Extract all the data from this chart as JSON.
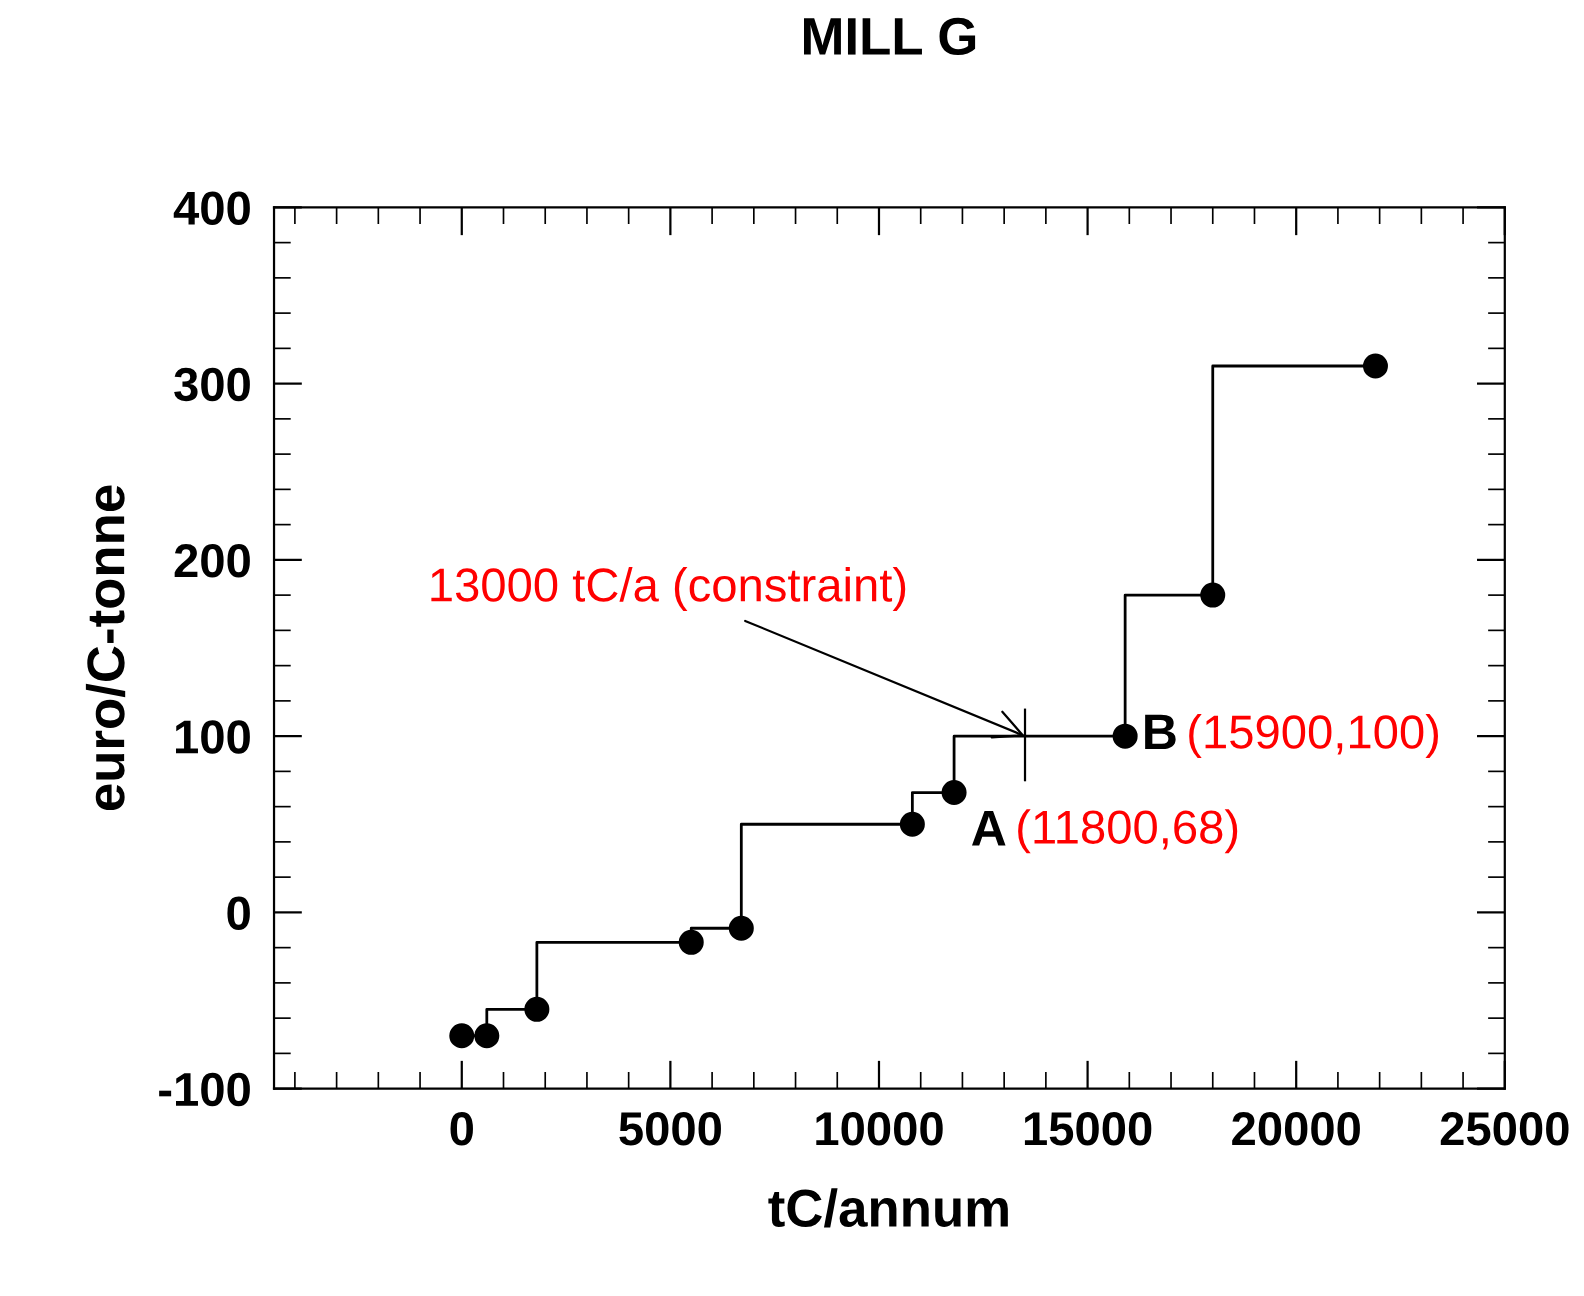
{
  "chart_data": {
    "type": "step",
    "title": "MILL G",
    "xlabel": "tC/annum",
    "ylabel": "euro/C-tonne",
    "x": [
      0,
      600,
      1800,
      5500,
      6700,
      10800,
      11800,
      15900,
      18000,
      21900
    ],
    "series": [
      {
        "color": "#000000",
        "values": [
          -70,
          -70,
          -55,
          -17,
          -9,
          50,
          68,
          100,
          180,
          310
        ]
      }
    ],
    "marker": "circle",
    "line_style": "solid",
    "grid": false,
    "legend": false,
    "xlim": [
      -4500,
      25000
    ],
    "ylim": [
      -100,
      400
    ],
    "xticks": [
      {
        "value": -4000,
        "label": null
      },
      {
        "value": -3000,
        "label": null
      },
      {
        "value": -2000,
        "label": null
      },
      {
        "value": -1000,
        "label": null
      },
      0,
      {
        "value": 1000,
        "label": null
      },
      {
        "value": 2000,
        "label": null
      },
      {
        "value": 3000,
        "label": null
      },
      {
        "value": 4000,
        "label": null
      },
      5000,
      {
        "value": 6000,
        "label": null
      },
      {
        "value": 7000,
        "label": null
      },
      {
        "value": 8000,
        "label": null
      },
      {
        "value": 9000,
        "label": null
      },
      10000,
      {
        "value": 11000,
        "label": null
      },
      {
        "value": 12000,
        "label": null
      },
      {
        "value": 13000,
        "label": null
      },
      {
        "value": 14000,
        "label": null
      },
      15000,
      {
        "value": 16000,
        "label": null
      },
      {
        "value": 17000,
        "label": null
      },
      {
        "value": 18000,
        "label": null
      },
      {
        "value": 19000,
        "label": null
      },
      20000,
      {
        "value": 21000,
        "label": null
      },
      {
        "value": 22000,
        "label": null
      },
      {
        "value": 23000,
        "label": null
      },
      {
        "value": 24000,
        "label": null
      },
      25000
    ],
    "yticks": [
      -100,
      {
        "value": -80,
        "label": null
      },
      {
        "value": -60,
        "label": null
      },
      {
        "value": -40,
        "label": null
      },
      {
        "value": -20,
        "label": null
      },
      0,
      {
        "value": 20,
        "label": null
      },
      {
        "value": 40,
        "label": null
      },
      {
        "value": 60,
        "label": null
      },
      {
        "value": 80,
        "label": null
      },
      100,
      {
        "value": 120,
        "label": null
      },
      {
        "value": 140,
        "label": null
      },
      {
        "value": 160,
        "label": null
      },
      {
        "value": 180,
        "label": null
      },
      200,
      {
        "value": 220,
        "label": null
      },
      {
        "value": 240,
        "label": null
      },
      {
        "value": 260,
        "label": null
      },
      {
        "value": 280,
        "label": null
      },
      300,
      {
        "value": 320,
        "label": null
      },
      {
        "value": 340,
        "label": null
      },
      {
        "value": 360,
        "label": null
      },
      {
        "value": 380,
        "label": null
      },
      400
    ],
    "annotations": [
      {
        "text": "13000 tC/a (constraint)",
        "x": 13500,
        "y": 100
      },
      {
        "text": "A",
        "x": 11800,
        "y": 68
      },
      {
        "text": "(11800,68)",
        "x": 11800,
        "y": 68
      },
      {
        "text": "B",
        "x": 15900,
        "y": 100
      },
      {
        "text": "(15900,100)",
        "x": 15900,
        "y": 100
      }
    ]
  }
}
